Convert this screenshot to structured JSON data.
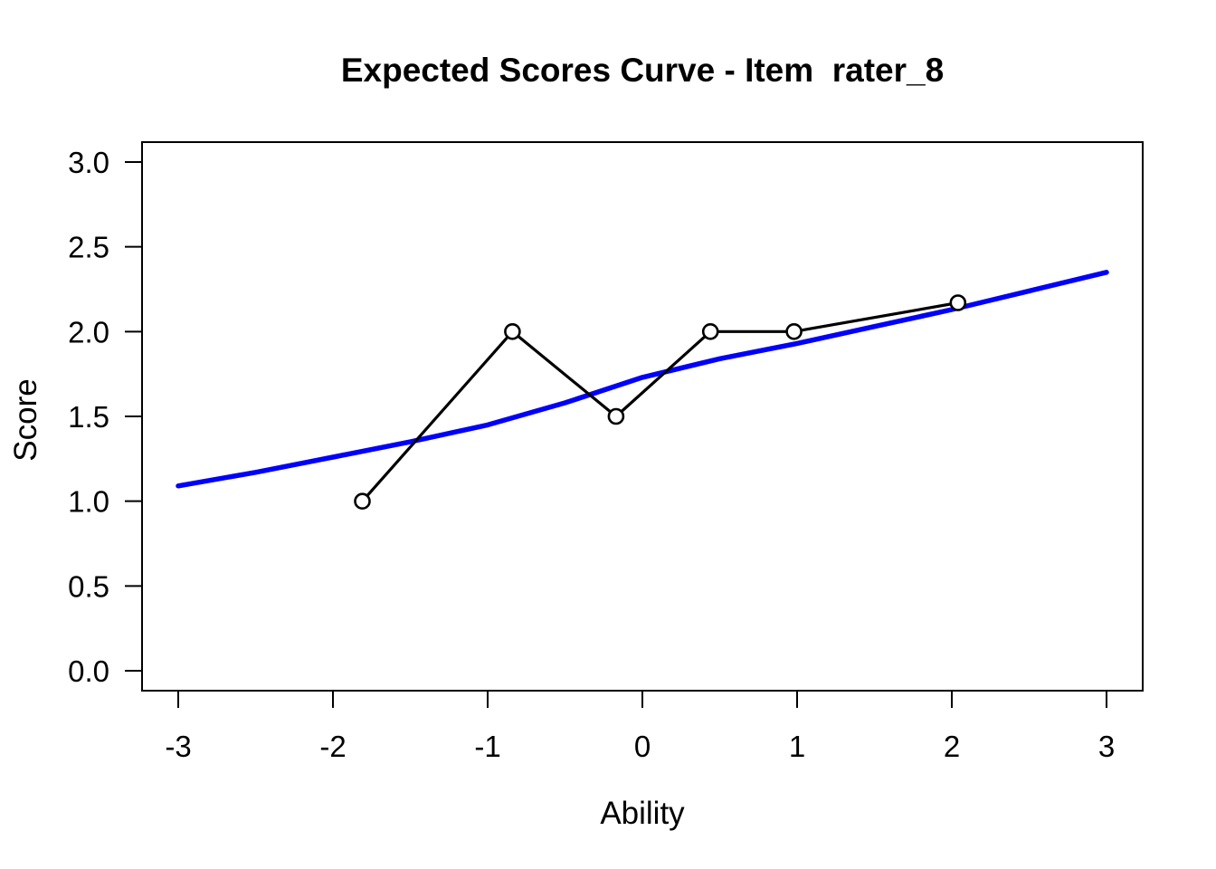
{
  "chart_data": {
    "type": "line",
    "title": "Expected Scores Curve - Item  rater_8",
    "xlabel": "Ability",
    "ylabel": "Score",
    "xlim": [
      -3,
      3
    ],
    "ylim": [
      0,
      3
    ],
    "grid": false,
    "legend": null,
    "x_ticks": [
      -3,
      -2,
      -1,
      0,
      1,
      2,
      3
    ],
    "x_tick_labels": [
      "-3",
      "-2",
      "-1",
      "0",
      "1",
      "2",
      "3"
    ],
    "y_ticks": [
      0,
      0.5,
      1,
      1.5,
      2,
      2.5,
      3
    ],
    "y_tick_labels": [
      "0.0",
      "0.5",
      "1.0",
      "1.5",
      "2.0",
      "2.5",
      "3.0"
    ],
    "colors": {
      "expected_curve": "#0000ff",
      "observed_line": "#000000",
      "axis": "#000000"
    },
    "series": [
      {
        "name": "expected-score-curve",
        "style": "line",
        "color": "#0000ff",
        "stroke_width": 5.5,
        "x": [
          -3,
          -2.5,
          -2,
          -1.5,
          -1,
          -0.5,
          0,
          0.5,
          1,
          1.5,
          2,
          2.5,
          3
        ],
        "y": [
          1.09,
          1.17,
          1.26,
          1.35,
          1.45,
          1.58,
          1.73,
          1.84,
          1.93,
          2.03,
          2.13,
          2.24,
          2.35
        ]
      },
      {
        "name": "observed-average-scores",
        "style": "line-markers",
        "color": "#000000",
        "stroke_width": 3.2,
        "marker": "open-circle",
        "marker_radius": 8,
        "marker_stroke_width": 2.6,
        "marker_fill": "#ffffff",
        "x": [
          -1.81,
          -0.84,
          -0.17,
          0.44,
          0.98,
          2.04
        ],
        "y": [
          1.0,
          2.0,
          1.5,
          2.0,
          2.0,
          2.17
        ]
      }
    ]
  }
}
